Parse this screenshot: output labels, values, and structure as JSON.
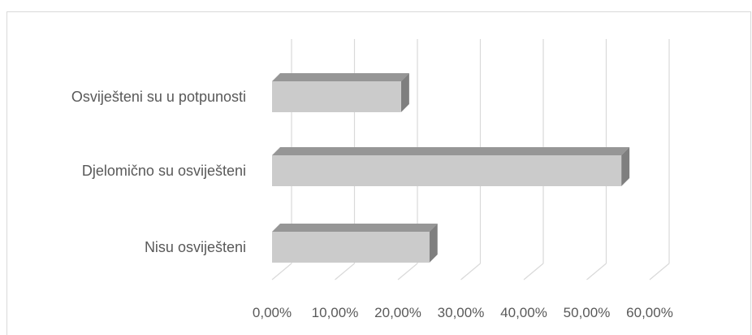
{
  "chart_data": {
    "type": "bar",
    "orientation": "horizontal",
    "style": "3d",
    "categories": [
      "Osviješteni su u potpunosti",
      "Djelomično su osviješteni",
      "Nisu osviješteni"
    ],
    "values": [
      20.5,
      55.5,
      25.0
    ],
    "value_unit": "%",
    "xlim": [
      0,
      60
    ],
    "x_ticks": [
      "0,00%",
      "10,00%",
      "20,00%",
      "30,00%",
      "40,00%",
      "50,00%",
      "60,00%"
    ],
    "grid": true,
    "legend": "none",
    "colors": {
      "bar_face": "#cbcbcb",
      "bar_top": "#969696",
      "bar_side": "#7f7f7f",
      "grid": "#d9d9d9",
      "text": "#595959"
    }
  }
}
